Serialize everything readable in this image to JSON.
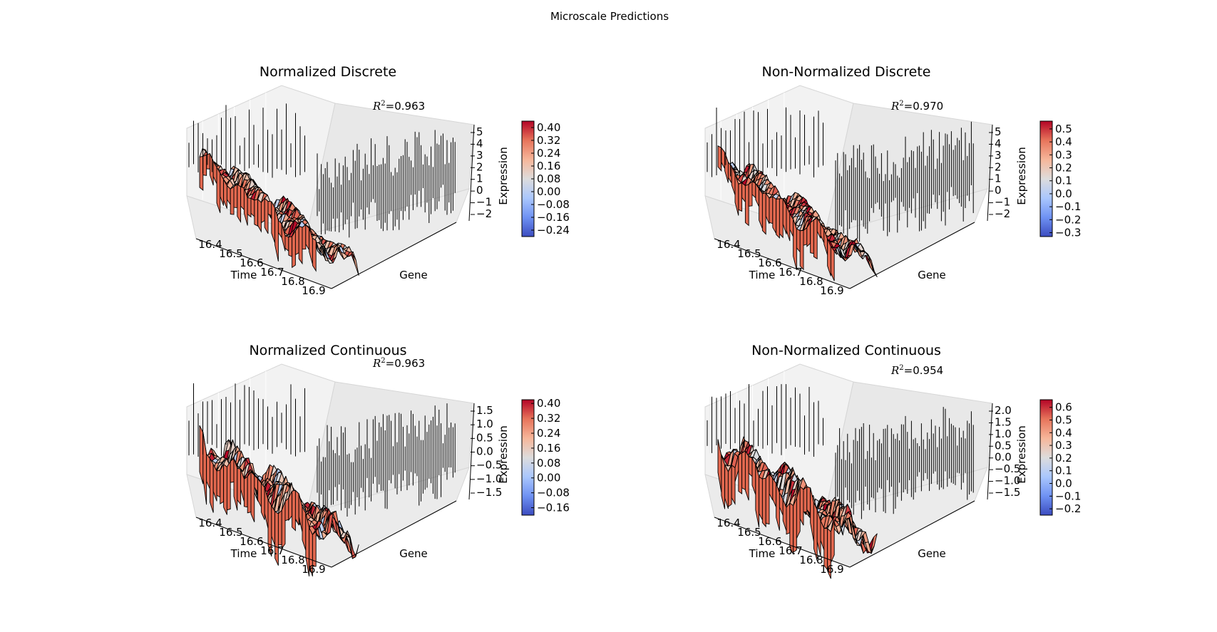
{
  "figure": {
    "suptitle": "Microscale Predictions"
  },
  "colormap": [
    "#3b4cc0",
    "#6f92f3",
    "#aac7fd",
    "#dddcdc",
    "#f6b69a",
    "#e7745b",
    "#b40426"
  ],
  "chart_data": [
    {
      "type": "surface3d",
      "title": "Normalized Discrete",
      "annotation": {
        "label": "R^2",
        "value": "=0.963"
      },
      "xlabel": "Time",
      "ylabel": "Gene",
      "zlabel": "Expression",
      "x_ticks": [
        "16.4",
        "16.5",
        "16.6",
        "16.7",
        "16.8",
        "16.9"
      ],
      "z_ticks": [
        "5",
        "4",
        "3",
        "2",
        "1",
        "0",
        "−1",
        "−2"
      ],
      "colorbar": {
        "ticks": [
          "0.40",
          "0.32",
          "0.24",
          "0.16",
          "0.08",
          "0.00",
          "−0.08",
          "−0.16",
          "−0.24"
        ],
        "range": [
          -0.28,
          0.44
        ]
      }
    },
    {
      "type": "surface3d",
      "title": "Non-Normalized Discrete",
      "annotation": {
        "label": "R^2",
        "value": "=0.970"
      },
      "xlabel": "Time",
      "ylabel": "Gene",
      "zlabel": "Expression",
      "x_ticks": [
        "16.4",
        "16.5",
        "16.6",
        "16.7",
        "16.8",
        "16.9"
      ],
      "z_ticks": [
        "5",
        "4",
        "3",
        "2",
        "1",
        "0",
        "−1",
        "−2"
      ],
      "colorbar": {
        "ticks": [
          "0.5",
          "0.4",
          "0.3",
          "0.2",
          "0.1",
          "0.0",
          "−0.1",
          "−0.2",
          "−0.3"
        ],
        "range": [
          -0.33,
          0.56
        ]
      }
    },
    {
      "type": "surface3d",
      "title": "Normalized Continuous",
      "annotation": {
        "label": "R^2",
        "value": "=0.963"
      },
      "xlabel": "Time",
      "ylabel": "Gene",
      "zlabel": "Expression",
      "x_ticks": [
        "16.4",
        "16.5",
        "16.6",
        "16.7",
        "16.8",
        "16.9"
      ],
      "z_ticks": [
        "1.5",
        "1.0",
        "0.5",
        "0.0",
        "−0.5",
        "−1.0",
        "−1.5"
      ],
      "colorbar": {
        "ticks": [
          "0.40",
          "0.32",
          "0.24",
          "0.16",
          "0.08",
          "0.00",
          "−0.08",
          "−0.16"
        ],
        "range": [
          -0.2,
          0.42
        ]
      }
    },
    {
      "type": "surface3d",
      "title": "Non-Normalized Continuous",
      "annotation": {
        "label": "R^2",
        "value": "=0.954"
      },
      "xlabel": "Time",
      "ylabel": "Gene",
      "zlabel": "Expression",
      "x_ticks": [
        "16.4",
        "16.5",
        "16.6",
        "16.7",
        "16.8",
        "16.9"
      ],
      "z_ticks": [
        "2.0",
        "1.5",
        "1.0",
        "0.5",
        "0.0",
        "−0.5",
        "−1.0",
        "−1.5"
      ],
      "colorbar": {
        "ticks": [
          "0.6",
          "0.5",
          "0.4",
          "0.3",
          "0.2",
          "0.1",
          "0.0",
          "−0.1",
          "−0.2"
        ],
        "range": [
          -0.25,
          0.66
        ]
      }
    }
  ]
}
